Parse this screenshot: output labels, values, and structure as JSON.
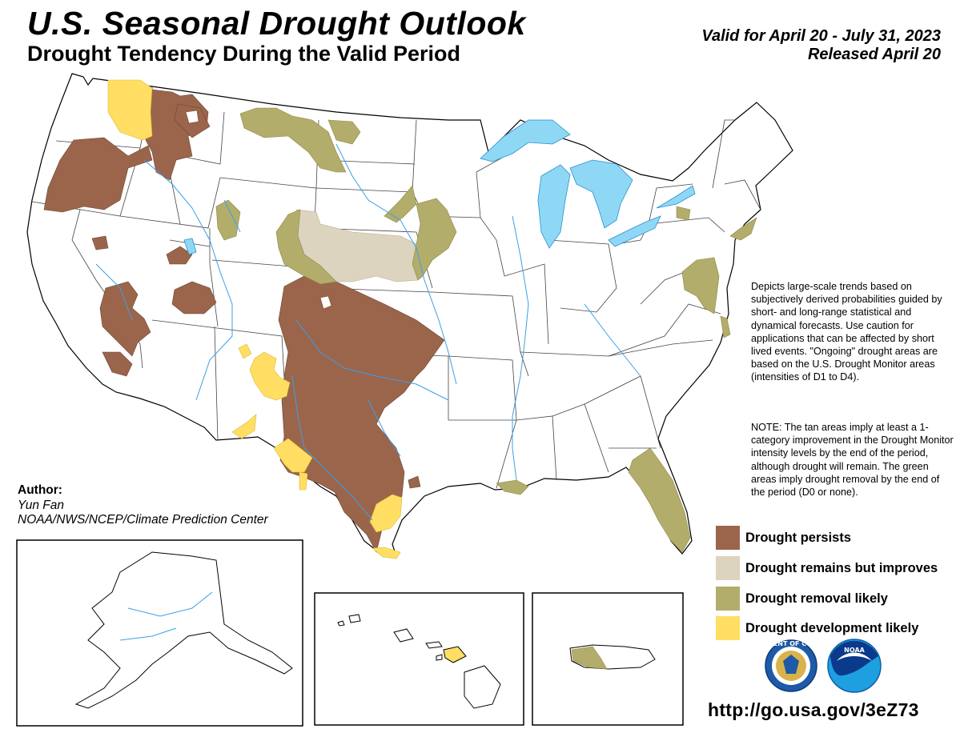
{
  "title": "U.S. Seasonal Drought Outlook",
  "subtitle": "Drought Tendency During the Valid Period",
  "valid_period": "Valid for April 20 - July 31, 2023",
  "released": "Released April 20",
  "author": {
    "label": "Author:",
    "name": "Yun Fan",
    "organization": "NOAA/NWS/NCEP/Climate Prediction Center"
  },
  "description_note": "Depicts large-scale trends based on subjectively derived probabilities guided by short- and long-range statistical and dynamical forecasts. Use caution for applications that can be affected by short lived events. \"Ongoing\" drought areas are based on the U.S. Drought Monitor areas (intensities of D1 to D4).",
  "tan_note": "NOTE: The tan areas imply at least a 1-category improvement in the Drought Monitor intensity levels by the end of the period, although drought will remain. The green areas imply drought removal by the end of the period (D0 or none).",
  "legend": [
    {
      "label": "Drought persists",
      "color": "#9b654b"
    },
    {
      "label": "Drought remains but improves",
      "color": "#ddd4bf"
    },
    {
      "label": "Drought removal likely",
      "color": "#b3ad6b"
    },
    {
      "label": "Drought development likely",
      "color": "#ffde63"
    }
  ],
  "colors": {
    "persists": "#9b654b",
    "improves": "#ddd4bf",
    "removal": "#b3ad6b",
    "development": "#ffde63",
    "water": "#8fd8f5",
    "river": "#3b9fe8"
  },
  "logos": [
    {
      "name": "department-of-commerce-seal",
      "text": "DEPARTMENT OF COMMERCE"
    },
    {
      "name": "noaa-logo",
      "text": "NOAA"
    }
  ],
  "url": "http://go.usa.gov/3eZ73"
}
